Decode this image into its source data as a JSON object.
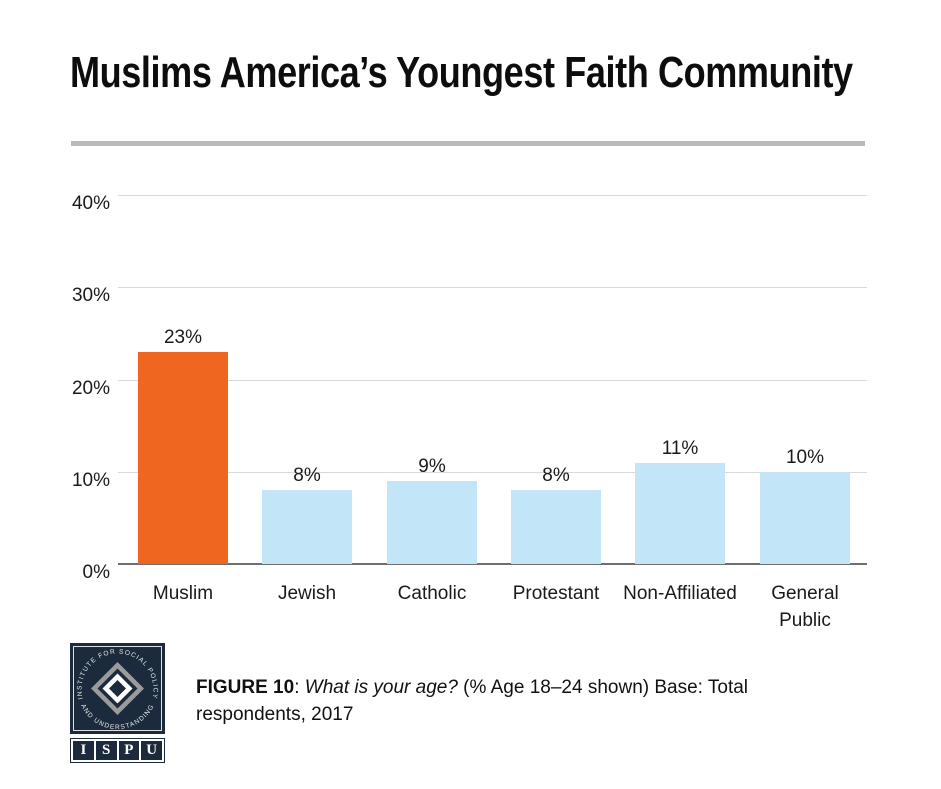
{
  "title": "Muslims America’s Youngest Faith Community",
  "colors": {
    "accent_orange": "#EE661F",
    "bar_blue": "#C2E5F8",
    "logo_navy": "#1B2A3C",
    "divider_gray": "#B9B9B9",
    "gridline_gray": "#D9D9D9",
    "axis_gray": "#6E6E6E"
  },
  "chart_data": {
    "type": "bar",
    "title": "Muslims America’s Youngest Faith Community",
    "categories": [
      "Muslim",
      "Jewish",
      "Catholic",
      "Protestant",
      "Non-Affiliated",
      "General\nPublic"
    ],
    "values": [
      23,
      8,
      9,
      8,
      11,
      10
    ],
    "value_labels": [
      "23%",
      "8%",
      "9%",
      "8%",
      "11%",
      "10%"
    ],
    "bar_colors": [
      "#EE661F",
      "#C2E5F8",
      "#C2E5F8",
      "#C2E5F8",
      "#C2E5F8",
      "#C2E5F8"
    ],
    "xlabel": "",
    "ylabel": "",
    "ylim": [
      0,
      45
    ],
    "grid": true,
    "legend": false,
    "yticks": [
      {
        "label": "0%",
        "value": 0
      },
      {
        "label": "10%",
        "value": 10
      },
      {
        "label": "20%",
        "value": 20
      },
      {
        "label": "30%",
        "value": 30
      },
      {
        "label": "40%",
        "value": 40
      }
    ]
  },
  "caption": {
    "figure_label": "FIGURE 10",
    "separator": ": ",
    "question": "What is your age?",
    "rest": " (% Age 18–24 shown) Base: Total respondents, 2017"
  },
  "logo": {
    "arc_top": "INSTITUTE FOR SOCIAL POLICY",
    "arc_bottom": "AND UNDERSTANDING",
    "letters": [
      "I",
      "S",
      "P",
      "U"
    ]
  }
}
